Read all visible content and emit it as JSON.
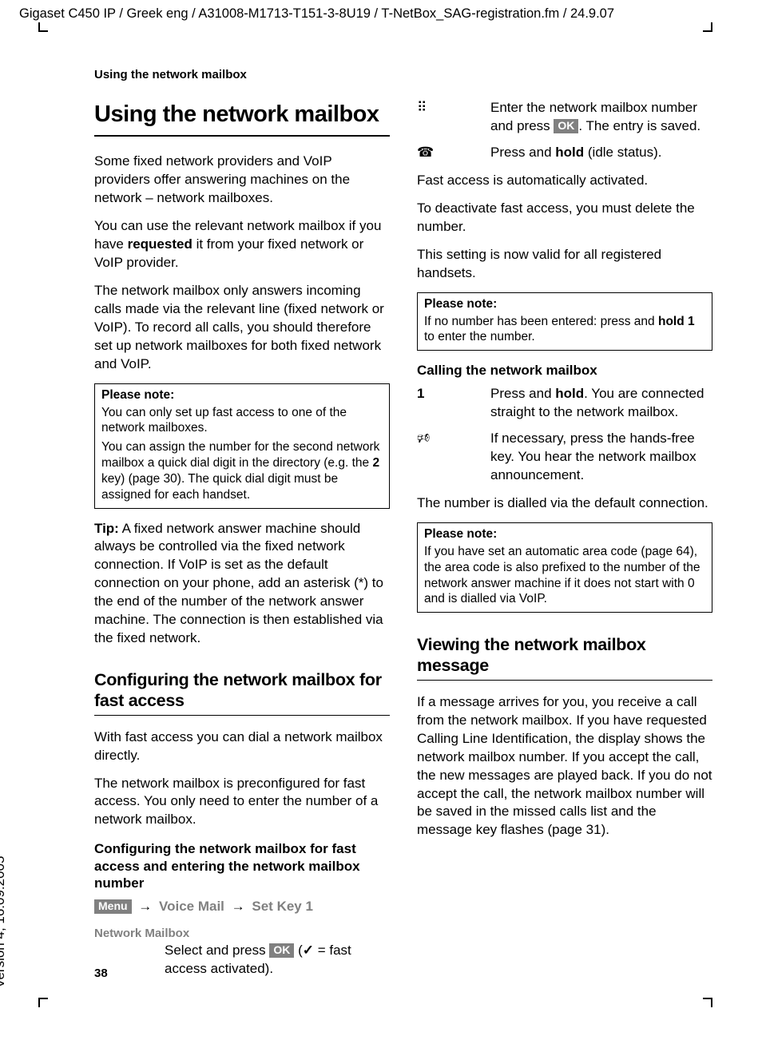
{
  "meta": {
    "crop_header": "Gigaset C450 IP / Greek eng / A31008-M1713-T151-3-8U19 / T-NetBox_SAG-registration.fm / 24.9.07",
    "version_side": "Version 4, 16.09.2005",
    "running_head": "Using the network mailbox",
    "page_number": "38"
  },
  "badges": {
    "menu": "Menu",
    "ok": "OK"
  },
  "left": {
    "title": "Using the network mailbox",
    "p1": "Some fixed network providers and VoIP providers offer answering machines on the network – network mailboxes.",
    "p2_a": "You can use the relevant network mailbox if you have ",
    "p2_b": "requested",
    "p2_c": " it from your fixed network or VoIP provider.",
    "p3": "The network mailbox only answers incoming calls made via the relevant line (fixed network or VoIP). To record all calls, you should therefore set up network mailboxes for both fixed network and VoIP.",
    "note1_title": "Please note:",
    "note1_p1": "You can only set up fast access to one of the network mailboxes.",
    "note1_p2_a": "You can assign the number for the second network mailbox a quick dial digit in the directory (e.g. the ",
    "note1_p2_key": "2",
    "note1_p2_b": " key) (page 30). The quick dial digit must be assigned for each handset.",
    "tip_label": "Tip:",
    "tip_body": " A fixed network answer machine should always be controlled via the fixed network connection. If VoIP is set as the default connection on your phone, add an asterisk (*) to the end of the number of the network answer machine. The connection is then established via the fixed network.",
    "h2": "Configuring the network mailbox for fast access",
    "p4": "With fast access you can dial a network mailbox directly.",
    "p5": "The network mailbox is preconfigured for fast access. You only need to enter the number of a network mailbox.",
    "h3": "Configuring the network mailbox for fast access and entering the network mailbox number",
    "nav1": "Voice Mail",
    "nav2": "Set Key 1",
    "nm_label": "Network Mailbox",
    "nm_body_a": "Select and press ",
    "nm_body_b": " (",
    "nm_body_c": " = fast access activated)."
  },
  "right": {
    "step_enter_a": "Enter the network mailbox number and press ",
    "step_enter_b": ". The entry is saved.",
    "step_hold_a": "Press and ",
    "step_hold_b": "hold",
    "step_hold_c": " (idle status).",
    "p1": "Fast access is automatically activated.",
    "p2": "To deactivate fast access, you must delete the number.",
    "p3": "This setting is now valid for all registered handsets.",
    "note1_title": "Please note:",
    "note1_a": "If no number has been entered: press and ",
    "note1_b": "hold",
    "note1_c": " ",
    "note1_key": "1",
    "note1_d": " to enter the number.",
    "h3_call": "Calling the network mailbox",
    "call_1_key": "1",
    "call_1_a": "Press and ",
    "call_1_b": "hold",
    "call_1_c": ". You are connected straight to the network mailbox.",
    "call_2": "If necessary, press the hands-free key. You hear the network mailbox announcement.",
    "p4": "The number is dialled via the default connection.",
    "note2_title": "Please note:",
    "note2_body": "If you have set an automatic area code (page 64), the area code is also prefixed to the number of the network answer machine if it does not start with 0 and is dialled via VoIP.",
    "h2_view": "Viewing the network mailbox message",
    "p5": "If a message arrives for you, you receive a call from the network mailbox. If you have requested Calling Line Identification, the display shows the network mailbox number. If you accept the call, the new messages are played back. If you do not accept the call, the network mailbox number will be saved in the missed calls list and the message key flashes (page 31)."
  },
  "icons": {
    "keypad": "⠿",
    "hangup": "☎",
    "speaker": "🕫"
  }
}
